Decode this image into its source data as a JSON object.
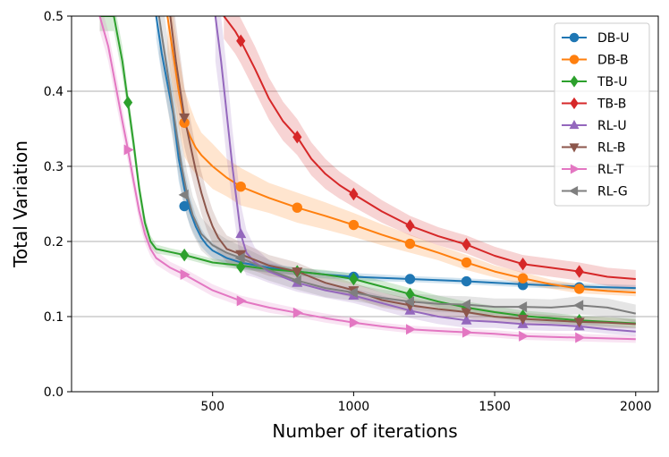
{
  "chart_data": {
    "type": "line",
    "title": "",
    "xlabel": "Number of iterations",
    "ylabel": "Total Variation",
    "xlim": [
      0,
      2080
    ],
    "ylim": [
      0.0,
      0.5
    ],
    "xticks": [
      500,
      1000,
      1500,
      2000
    ],
    "yticks": [
      0.0,
      0.1,
      0.2,
      0.3,
      0.4,
      0.5
    ],
    "xtick_labels": [
      "500",
      "1000",
      "1500",
      "2000"
    ],
    "ytick_labels": [
      "0.0",
      "0.1",
      "0.2",
      "0.3",
      "0.4",
      "0.5"
    ],
    "grid": "horizontal",
    "legend_position": "top-right",
    "series": [
      {
        "name": "DB-U",
        "color": "#1f77b4",
        "marker": "circle",
        "x": [
          300,
          320,
          340,
          360,
          380,
          400,
          420,
          440,
          460,
          480,
          500,
          550,
          600,
          700,
          800,
          900,
          1000,
          1200,
          1400,
          1600,
          1800,
          2000
        ],
        "y": [
          0.5,
          0.45,
          0.41,
          0.37,
          0.31,
          0.27,
          0.24,
          0.22,
          0.205,
          0.195,
          0.188,
          0.178,
          0.172,
          0.165,
          0.16,
          0.156,
          0.153,
          0.15,
          0.147,
          0.143,
          0.14,
          0.138
        ],
        "band": [
          0.03,
          0.03,
          0.03,
          0.03,
          0.03,
          0.025,
          0.02,
          0.015,
          0.012,
          0.01,
          0.01,
          0.008,
          0.008,
          0.006,
          0.005,
          0.005,
          0.005,
          0.004,
          0.004,
          0.004,
          0.004,
          0.004
        ],
        "markers_x": [
          400,
          1000,
          1200,
          1400,
          1600,
          1800
        ],
        "markers_y": [
          0.247,
          0.153,
          0.15,
          0.147,
          0.142,
          0.139
        ]
      },
      {
        "name": "DB-B",
        "color": "#ff7f0e",
        "marker": "circle",
        "x": [
          340,
          360,
          380,
          400,
          420,
          440,
          460,
          500,
          550,
          600,
          700,
          800,
          900,
          1000,
          1100,
          1200,
          1300,
          1400,
          1500,
          1600,
          1700,
          1800,
          1900,
          2000
        ],
        "y": [
          0.5,
          0.45,
          0.4,
          0.358,
          0.34,
          0.325,
          0.315,
          0.3,
          0.285,
          0.273,
          0.258,
          0.245,
          0.234,
          0.222,
          0.209,
          0.197,
          0.185,
          0.172,
          0.16,
          0.151,
          0.143,
          0.137,
          0.134,
          0.132
        ],
        "band": [
          0.05,
          0.05,
          0.05,
          0.045,
          0.04,
          0.035,
          0.03,
          0.03,
          0.025,
          0.025,
          0.02,
          0.02,
          0.018,
          0.016,
          0.014,
          0.012,
          0.01,
          0.01,
          0.008,
          0.008,
          0.006,
          0.006,
          0.005,
          0.005
        ],
        "markers_x": [
          400,
          600,
          800,
          1000,
          1200,
          1400,
          1600,
          1800
        ],
        "markers_y": [
          0.358,
          0.273,
          0.245,
          0.222,
          0.197,
          0.172,
          0.151,
          0.137
        ]
      },
      {
        "name": "TB-U",
        "color": "#2ca02c",
        "marker": "diamond",
        "x": [
          100,
          150,
          180,
          200,
          220,
          240,
          260,
          280,
          300,
          350,
          400,
          500,
          600,
          700,
          800,
          900,
          1000,
          1100,
          1200,
          1300,
          1400,
          1500,
          1600,
          1700,
          1800,
          1900,
          2000
        ],
        "y": [
          0.5,
          0.5,
          0.44,
          0.385,
          0.33,
          0.27,
          0.225,
          0.2,
          0.19,
          0.186,
          0.182,
          0.172,
          0.168,
          0.163,
          0.16,
          0.156,
          0.15,
          0.14,
          0.13,
          0.12,
          0.112,
          0.106,
          0.101,
          0.098,
          0.095,
          0.093,
          0.091
        ],
        "band": [
          0.02,
          0.02,
          0.02,
          0.015,
          0.015,
          0.012,
          0.01,
          0.008,
          0.006,
          0.005,
          0.005,
          0.005,
          0.005,
          0.005,
          0.005,
          0.006,
          0.007,
          0.008,
          0.008,
          0.008,
          0.008,
          0.008,
          0.007,
          0.007,
          0.006,
          0.006,
          0.006
        ],
        "markers_x": [
          200,
          400,
          600,
          800,
          1000,
          1200,
          1400,
          1600,
          1800
        ],
        "markers_y": [
          0.385,
          0.182,
          0.166,
          0.16,
          0.15,
          0.13,
          0.112,
          0.101,
          0.095
        ]
      },
      {
        "name": "TB-B",
        "color": "#d62728",
        "marker": "diamond",
        "x": [
          540,
          560,
          580,
          600,
          650,
          700,
          750,
          800,
          850,
          900,
          950,
          1000,
          1100,
          1200,
          1300,
          1400,
          1500,
          1600,
          1700,
          1800,
          1900,
          2000
        ],
        "y": [
          0.5,
          0.49,
          0.48,
          0.467,
          0.43,
          0.39,
          0.36,
          0.339,
          0.31,
          0.29,
          0.275,
          0.263,
          0.24,
          0.221,
          0.207,
          0.196,
          0.181,
          0.17,
          0.165,
          0.16,
          0.153,
          0.15
        ],
        "band": [
          0.03,
          0.03,
          0.03,
          0.03,
          0.03,
          0.028,
          0.026,
          0.024,
          0.022,
          0.02,
          0.018,
          0.017,
          0.015,
          0.013,
          0.012,
          0.012,
          0.012,
          0.012,
          0.012,
          0.012,
          0.012,
          0.012
        ],
        "markers_x": [
          600,
          800,
          1000,
          1200,
          1400,
          1600,
          1800
        ],
        "markers_y": [
          0.467,
          0.339,
          0.263,
          0.221,
          0.196,
          0.17,
          0.16
        ]
      },
      {
        "name": "RL-U",
        "color": "#9467bd",
        "marker": "triangle-up",
        "x": [
          510,
          530,
          550,
          570,
          590,
          600,
          620,
          650,
          700,
          800,
          900,
          1000,
          1100,
          1200,
          1300,
          1400,
          1500,
          1600,
          1700,
          1800,
          1900,
          2000
        ],
        "y": [
          0.5,
          0.44,
          0.37,
          0.3,
          0.24,
          0.21,
          0.185,
          0.172,
          0.16,
          0.145,
          0.135,
          0.128,
          0.118,
          0.108,
          0.1,
          0.095,
          0.093,
          0.09,
          0.089,
          0.087,
          0.083,
          0.08
        ],
        "band": [
          0.06,
          0.06,
          0.06,
          0.05,
          0.045,
          0.04,
          0.03,
          0.02,
          0.015,
          0.012,
          0.01,
          0.01,
          0.01,
          0.01,
          0.01,
          0.01,
          0.008,
          0.008,
          0.008,
          0.006,
          0.006,
          0.006
        ],
        "markers_x": [
          600,
          800,
          1000,
          1200,
          1400,
          1600,
          1800
        ],
        "markers_y": [
          0.21,
          0.145,
          0.128,
          0.108,
          0.095,
          0.09,
          0.087
        ]
      },
      {
        "name": "RL-B",
        "color": "#8c564b",
        "marker": "triangle-down",
        "x": [
          350,
          370,
          390,
          400,
          420,
          440,
          460,
          480,
          500,
          520,
          550,
          600,
          700,
          800,
          900,
          1000,
          1100,
          1200,
          1300,
          1400,
          1500,
          1600,
          1700,
          1800,
          1900,
          2000
        ],
        "y": [
          0.5,
          0.44,
          0.39,
          0.365,
          0.33,
          0.295,
          0.265,
          0.24,
          0.22,
          0.205,
          0.19,
          0.183,
          0.168,
          0.16,
          0.145,
          0.135,
          0.122,
          0.115,
          0.11,
          0.106,
          0.1,
          0.097,
          0.095,
          0.093,
          0.092,
          0.09
        ],
        "band": [
          0.05,
          0.05,
          0.045,
          0.04,
          0.035,
          0.03,
          0.028,
          0.025,
          0.022,
          0.02,
          0.018,
          0.016,
          0.014,
          0.012,
          0.011,
          0.01,
          0.01,
          0.009,
          0.009,
          0.008,
          0.008,
          0.008,
          0.007,
          0.007,
          0.007,
          0.006
        ],
        "markers_x": [
          400,
          600,
          800,
          1000,
          1200,
          1400,
          1600,
          1800
        ],
        "markers_y": [
          0.365,
          0.183,
          0.16,
          0.135,
          0.115,
          0.106,
          0.097,
          0.093
        ]
      },
      {
        "name": "RL-T",
        "color": "#e377c2",
        "marker": "triangle-right",
        "x": [
          100,
          130,
          160,
          180,
          200,
          220,
          240,
          260,
          280,
          300,
          350,
          400,
          500,
          600,
          700,
          800,
          900,
          1000,
          1100,
          1200,
          1300,
          1400,
          1500,
          1600,
          1700,
          1800,
          1900,
          2000
        ],
        "y": [
          0.5,
          0.46,
          0.4,
          0.36,
          0.322,
          0.28,
          0.24,
          0.21,
          0.19,
          0.178,
          0.165,
          0.156,
          0.135,
          0.121,
          0.112,
          0.105,
          0.098,
          0.092,
          0.087,
          0.083,
          0.081,
          0.079,
          0.077,
          0.074,
          0.073,
          0.072,
          0.071,
          0.07
        ],
        "band": [
          0.02,
          0.02,
          0.02,
          0.018,
          0.016,
          0.015,
          0.014,
          0.012,
          0.01,
          0.009,
          0.008,
          0.008,
          0.008,
          0.007,
          0.007,
          0.006,
          0.006,
          0.006,
          0.005,
          0.005,
          0.005,
          0.005,
          0.005,
          0.005,
          0.005,
          0.005,
          0.005,
          0.005
        ],
        "markers_x": [
          200,
          400,
          600,
          800,
          1000,
          1200,
          1400,
          1600,
          1800
        ],
        "markers_y": [
          0.322,
          0.156,
          0.121,
          0.105,
          0.092,
          0.083,
          0.079,
          0.074,
          0.072
        ]
      },
      {
        "name": "RL-G",
        "color": "#7f7f7f",
        "marker": "triangle-left",
        "x": [
          310,
          330,
          350,
          370,
          390,
          410,
          430,
          460,
          500,
          550,
          600,
          700,
          800,
          900,
          1000,
          1100,
          1200,
          1300,
          1400,
          1500,
          1600,
          1700,
          1800,
          1900,
          2000
        ],
        "y": [
          0.5,
          0.45,
          0.4,
          0.35,
          0.3,
          0.262,
          0.235,
          0.21,
          0.195,
          0.185,
          0.178,
          0.162,
          0.148,
          0.138,
          0.132,
          0.125,
          0.12,
          0.117,
          0.116,
          0.113,
          0.113,
          0.112,
          0.115,
          0.112,
          0.104
        ],
        "band": [
          0.05,
          0.05,
          0.045,
          0.04,
          0.035,
          0.03,
          0.025,
          0.022,
          0.02,
          0.018,
          0.016,
          0.014,
          0.012,
          0.012,
          0.011,
          0.011,
          0.011,
          0.011,
          0.011,
          0.011,
          0.011,
          0.011,
          0.012,
          0.012,
          0.012
        ],
        "markers_x": [
          400,
          600,
          800,
          1000,
          1200,
          1400,
          1600,
          1800
        ],
        "markers_y": [
          0.262,
          0.178,
          0.148,
          0.132,
          0.12,
          0.116,
          0.113,
          0.115
        ]
      }
    ]
  }
}
